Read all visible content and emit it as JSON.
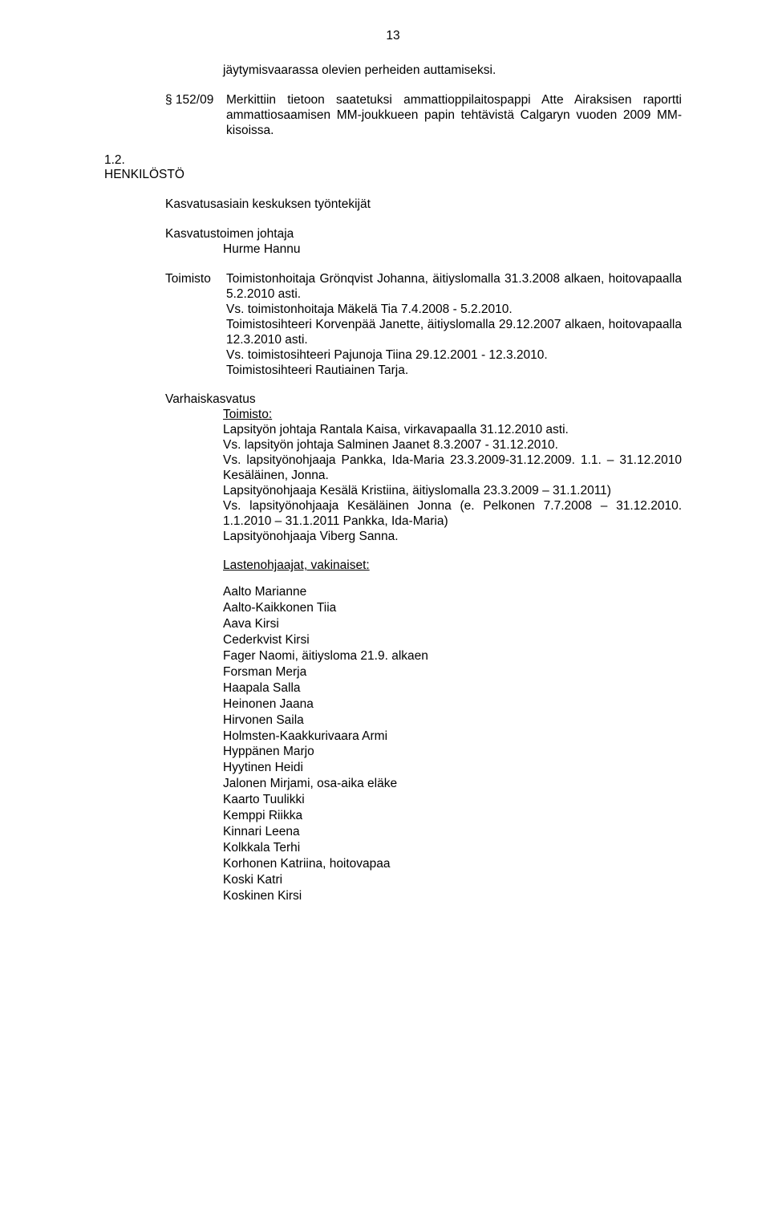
{
  "pageNumber": "13",
  "intro_line": "jäytymisvaarassa olevien perheiden auttamiseksi.",
  "item": {
    "ref": "§ 152/09",
    "text": "Merkittiin tietoon saatetuksi ammattioppilaitospappi Atte Airaksisen raportti ammattiosaamisen MM-joukkueen papin tehtävistä Calgaryn vuoden 2009 MM-kisoissa."
  },
  "section": {
    "num": "1.2.",
    "title": "HENKILÖSTÖ"
  },
  "sub1": {
    "title": "Kasvatusasiain keskuksen työntekijät",
    "role": "Kasvatustoimen johtaja",
    "name": "Hurme Hannu"
  },
  "toimisto": {
    "label": "Toimisto",
    "text": "Toimistonhoitaja Grönqvist Johanna, äitiyslomalla 31.3.2008 alkaen, hoitovapaalla 5.2.2010 asti.\nVs. toimistonhoitaja Mäkelä Tia 7.4.2008 - 5.2.2010.\nToimistosihteeri Korvenpää Janette, äitiyslomalla 29.12.2007 alkaen, hoitovapaalla 12.3.2010 asti.\nVs. toimistosihteeri Pajunoja Tiina 29.12.2001 - 12.3.2010.\nToimistosihteeri Rautiainen Tarja."
  },
  "vk": {
    "title": "Varhaiskasvatus",
    "subtitle": "Toimisto:",
    "line1": "Lapsityön johtaja Rantala Kaisa, virkavapaalla 31.12.2010 asti.",
    "line2": "Vs. lapsityön johtaja Salminen Jaanet 8.3.2007 - 31.12.2010.",
    "line3": "Vs. lapsityönohjaaja Pankka, Ida-Maria 23.3.2009-31.12.2009. 1.1. – 31.12.2010 Kesäläinen, Jonna.",
    "line4": "Lapsityönohjaaja Kesälä Kristiina, äitiyslomalla 23.3.2009 – 31.1.2011)",
    "line5": "Vs. lapsityönohjaaja Kesäläinen Jonna (e. Pelkonen 7.7.2008 – 31.12.2010. 1.1.2010 – 31.1.2011 Pankka, Ida-Maria)",
    "line6": "Lapsityönohjaaja Viberg Sanna."
  },
  "lasten": {
    "title": "Lastenohjaajat, vakinaiset:",
    "names": [
      "Aalto Marianne",
      "Aalto-Kaikkonen Tiia",
      "Aava Kirsi",
      "Cederkvist Kirsi",
      "Fager Naomi, äitiysloma 21.9. alkaen",
      "Forsman Merja",
      "Haapala Salla",
      "Heinonen Jaana",
      "Hirvonen Saila",
      "Holmsten-Kaakkurivaara Armi",
      "Hyppänen Marjo",
      "Hyytinen Heidi",
      "Jalonen Mirjami, osa-aika eläke",
      "Kaarto Tuulikki",
      "Kemppi Riikka",
      "Kinnari Leena",
      "Kolkkala Terhi",
      "Korhonen Katriina, hoitovapaa",
      "Koski Katri",
      "Koskinen Kirsi"
    ]
  }
}
